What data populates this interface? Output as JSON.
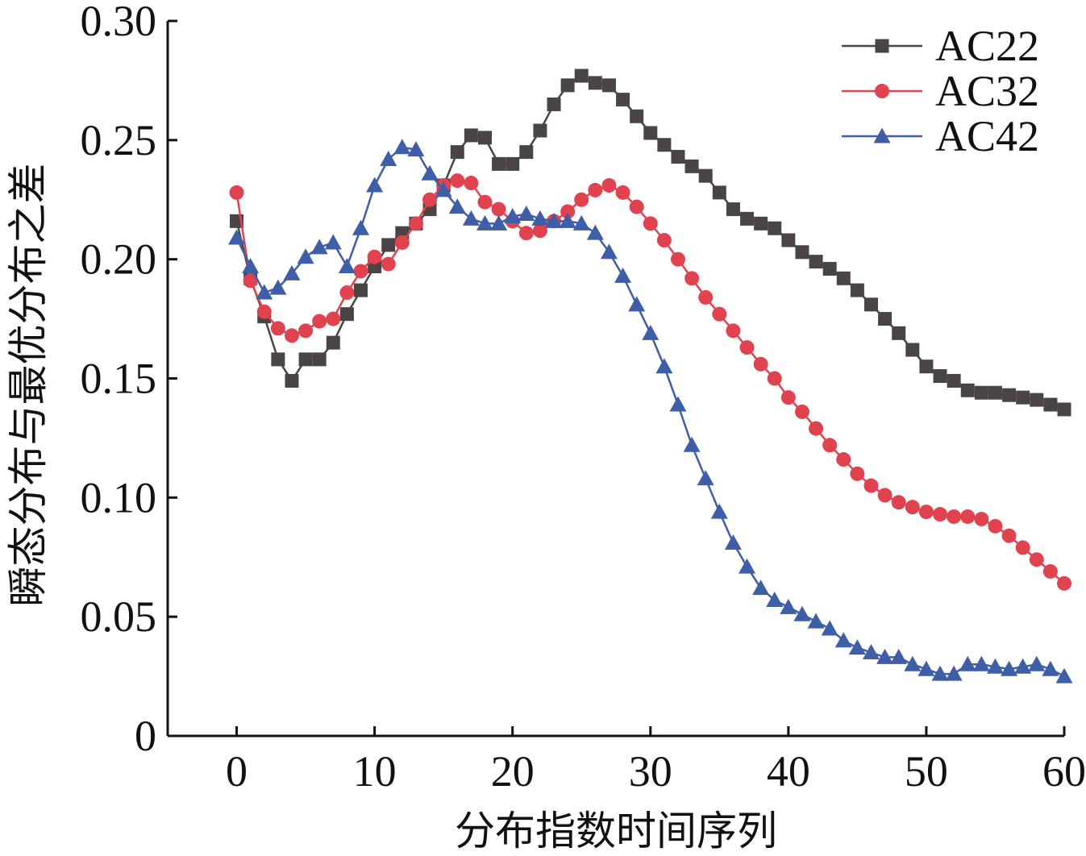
{
  "chart_data": {
    "type": "line",
    "title": "",
    "xlabel": "分布指数时间序列",
    "ylabel": "瞬态分布与最优分布之差",
    "xlim": [
      -5,
      60
    ],
    "ylim": [
      0,
      0.3
    ],
    "x_ticks": [
      0,
      10,
      20,
      30,
      40,
      50,
      60
    ],
    "x_tick_labels": [
      "0",
      "10",
      "20",
      "30",
      "40",
      "50",
      "60"
    ],
    "y_ticks": [
      0,
      0.05,
      0.1,
      0.15,
      0.2,
      0.25,
      0.3
    ],
    "y_tick_labels": [
      "0",
      "0.05",
      "0.10",
      "0.15",
      "0.20",
      "0.25",
      "0.30"
    ],
    "grid": false,
    "legend_position": "top-right",
    "x": [
      0,
      1,
      2,
      3,
      4,
      5,
      6,
      7,
      8,
      9,
      10,
      11,
      12,
      13,
      14,
      15,
      16,
      17,
      18,
      19,
      20,
      21,
      22,
      23,
      24,
      25,
      26,
      27,
      28,
      29,
      30,
      31,
      32,
      33,
      34,
      35,
      36,
      37,
      38,
      39,
      40,
      41,
      42,
      43,
      44,
      45,
      46,
      47,
      48,
      49,
      50,
      51,
      52,
      53,
      54,
      55,
      56,
      57,
      58,
      59,
      60
    ],
    "series": [
      {
        "name": "AC22",
        "color": "#4a4444",
        "marker": "square",
        "values": [
          0.216,
          0.192,
          0.176,
          0.158,
          0.149,
          0.158,
          0.158,
          0.165,
          0.177,
          0.187,
          0.197,
          0.206,
          0.211,
          0.215,
          0.221,
          0.231,
          0.245,
          0.252,
          0.251,
          0.24,
          0.24,
          0.245,
          0.254,
          0.265,
          0.273,
          0.277,
          0.274,
          0.273,
          0.267,
          0.26,
          0.253,
          0.248,
          0.243,
          0.239,
          0.235,
          0.228,
          0.221,
          0.217,
          0.215,
          0.213,
          0.208,
          0.203,
          0.199,
          0.196,
          0.192,
          0.187,
          0.181,
          0.175,
          0.169,
          0.162,
          0.155,
          0.151,
          0.149,
          0.145,
          0.144,
          0.144,
          0.143,
          0.142,
          0.141,
          0.139,
          0.137
        ]
      },
      {
        "name": "AC32",
        "color": "#e0424f",
        "marker": "circle",
        "values": [
          0.228,
          0.191,
          0.178,
          0.171,
          0.168,
          0.17,
          0.174,
          0.175,
          0.186,
          0.195,
          0.201,
          0.198,
          0.207,
          0.215,
          0.225,
          0.231,
          0.233,
          0.232,
          0.224,
          0.221,
          0.216,
          0.211,
          0.212,
          0.216,
          0.22,
          0.225,
          0.229,
          0.231,
          0.228,
          0.222,
          0.215,
          0.208,
          0.2,
          0.192,
          0.184,
          0.177,
          0.17,
          0.163,
          0.156,
          0.15,
          0.142,
          0.136,
          0.129,
          0.122,
          0.116,
          0.11,
          0.105,
          0.101,
          0.098,
          0.096,
          0.094,
          0.093,
          0.092,
          0.092,
          0.091,
          0.088,
          0.084,
          0.079,
          0.074,
          0.069,
          0.064
        ]
      },
      {
        "name": "AC42",
        "color": "#3f5ea8",
        "marker": "triangle",
        "values": [
          0.209,
          0.197,
          0.186,
          0.188,
          0.194,
          0.201,
          0.205,
          0.207,
          0.197,
          0.213,
          0.231,
          0.242,
          0.247,
          0.246,
          0.236,
          0.229,
          0.222,
          0.217,
          0.215,
          0.215,
          0.218,
          0.219,
          0.217,
          0.216,
          0.216,
          0.215,
          0.211,
          0.203,
          0.193,
          0.181,
          0.169,
          0.155,
          0.139,
          0.122,
          0.108,
          0.094,
          0.081,
          0.071,
          0.062,
          0.057,
          0.054,
          0.051,
          0.048,
          0.045,
          0.04,
          0.037,
          0.035,
          0.033,
          0.033,
          0.03,
          0.028,
          0.026,
          0.026,
          0.03,
          0.03,
          0.029,
          0.028,
          0.029,
          0.03,
          0.028,
          0.025
        ]
      }
    ]
  }
}
